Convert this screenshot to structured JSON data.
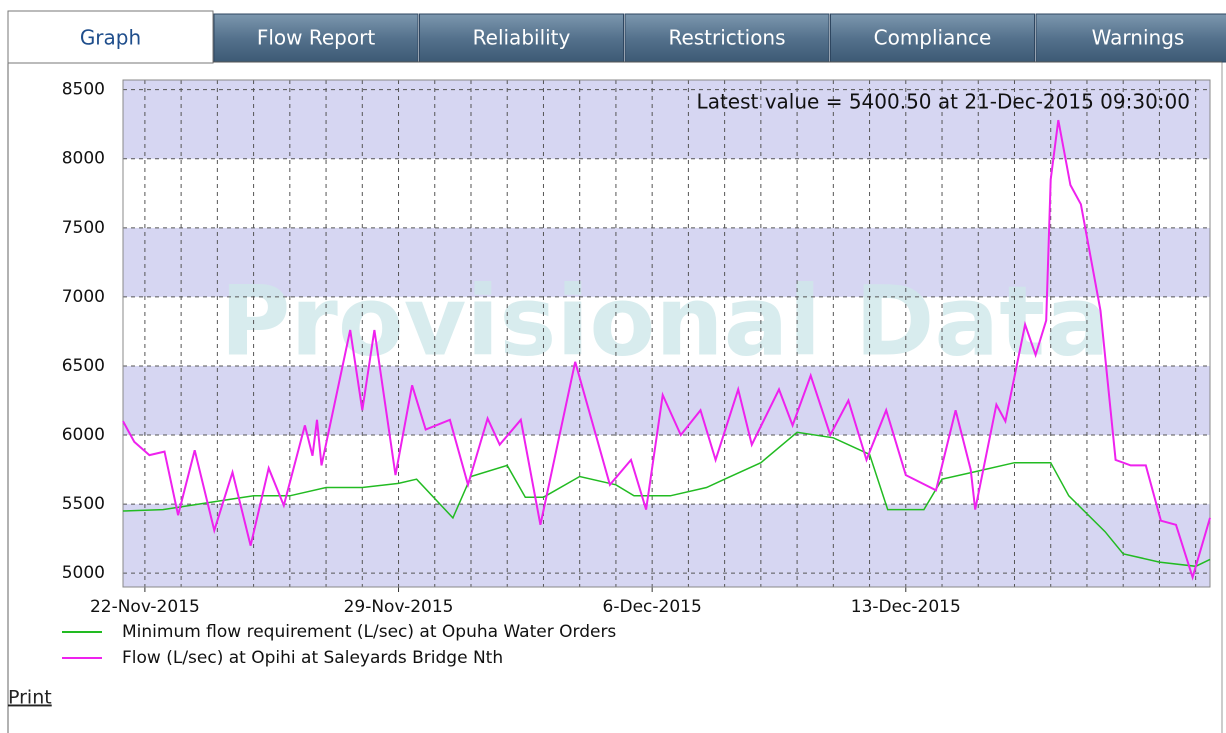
{
  "tabs": [
    "Graph",
    "Flow Report",
    "Reliability",
    "Restrictions",
    "Compliance",
    "Warnings"
  ],
  "print_link": "Print",
  "chart_data": {
    "type": "line",
    "watermark": "Provisional Data",
    "annotation": "Latest value = 5400.50 at 21-Dec-2015 09:30:00",
    "xlim": [
      "2015-11-21T09:30",
      "2015-12-21T09:30"
    ],
    "xticks": [
      {
        "value": "2015-11-22T00:00",
        "label": "22-Nov-2015"
      },
      {
        "value": "2015-11-29T00:00",
        "label": "29-Nov-2015"
      },
      {
        "value": "2015-12-06T00:00",
        "label": "6-Dec-2015"
      },
      {
        "value": "2015-12-13T00:00",
        "label": "13-Dec-2015"
      }
    ],
    "xgrid": [
      "2015-11-22T00:00",
      "2015-11-23T00:00",
      "2015-11-24T00:00",
      "2015-11-25T00:00",
      "2015-11-26T00:00",
      "2015-11-27T00:00",
      "2015-11-28T00:00",
      "2015-11-29T00:00",
      "2015-11-30T00:00",
      "2015-12-01T00:00",
      "2015-12-02T00:00",
      "2015-12-03T00:00",
      "2015-12-04T00:00",
      "2015-12-05T00:00",
      "2015-12-06T00:00",
      "2015-12-07T00:00",
      "2015-12-08T00:00",
      "2015-12-09T00:00",
      "2015-12-10T00:00",
      "2015-12-11T00:00",
      "2015-12-12T00:00",
      "2015-12-13T00:00",
      "2015-12-14T00:00",
      "2015-12-15T00:00",
      "2015-12-16T00:00",
      "2015-12-17T00:00",
      "2015-12-18T00:00",
      "2015-12-19T00:00",
      "2015-12-20T00:00",
      "2015-12-21T00:00"
    ],
    "ylim": [
      4900,
      8570
    ],
    "yticks": [
      5000,
      5500,
      6000,
      6500,
      7000,
      7500,
      8000,
      8500
    ],
    "grid": true,
    "series": [
      {
        "name": "Minimum flow requirement (L/sec) at Opuha Water Orders",
        "color": "#22bb22",
        "x": [
          "2015-11-21T09:30",
          "2015-11-22T12:00",
          "2015-11-24T00:00",
          "2015-11-25T00:00",
          "2015-11-26T00:00",
          "2015-11-27T00:00",
          "2015-11-28T00:00",
          "2015-11-29T00:00",
          "2015-11-29T12:00",
          "2015-11-30T12:00",
          "2015-12-01T00:00",
          "2015-12-02T00:00",
          "2015-12-02T12:00",
          "2015-12-03T00:00",
          "2015-12-04T00:00",
          "2015-12-05T00:00",
          "2015-12-05T12:00",
          "2015-12-06T12:00",
          "2015-12-07T12:00",
          "2015-12-08T00:00",
          "2015-12-09T00:00",
          "2015-12-10T00:00",
          "2015-12-11T00:00",
          "2015-12-12T00:00",
          "2015-12-12T12:00",
          "2015-12-13T12:00",
          "2015-12-14T00:00",
          "2015-12-15T00:00",
          "2015-12-16T00:00",
          "2015-12-17T00:00",
          "2015-12-17T12:00",
          "2015-12-18T12:00",
          "2015-12-19T00:00",
          "2015-12-20T00:00",
          "2015-12-21T00:00",
          "2015-12-21T09:30"
        ],
        "values": [
          5450,
          5460,
          5520,
          5560,
          5560,
          5620,
          5620,
          5650,
          5680,
          5400,
          5700,
          5780,
          5550,
          5550,
          5700,
          5640,
          5560,
          5560,
          5620,
          5680,
          5800,
          6020,
          5980,
          5860,
          5460,
          5460,
          5680,
          5740,
          5800,
          5800,
          5560,
          5300,
          5140,
          5080,
          5050,
          5100
        ]
      },
      {
        "name": "Flow (L/sec) at Opihi at Saleyards Bridge Nth",
        "color": "#ee22ee",
        "x": [
          "2015-11-21T09:30",
          "2015-11-21T17:00",
          "2015-11-22T03:00",
          "2015-11-22T13:00",
          "2015-11-22T22:00",
          "2015-11-23T09:00",
          "2015-11-23T22:00",
          "2015-11-24T10:00",
          "2015-11-24T22:00",
          "2015-11-25T10:00",
          "2015-11-25T20:00",
          "2015-11-26T10:00",
          "2015-11-26T15:00",
          "2015-11-26T18:00",
          "2015-11-26T21:00",
          "2015-11-27T16:00",
          "2015-11-28T00:00",
          "2015-11-28T08:00",
          "2015-11-28T22:00",
          "2015-11-29T09:00",
          "2015-11-29T18:00",
          "2015-11-30T10:00",
          "2015-11-30T22:00",
          "2015-12-01T11:00",
          "2015-12-01T19:00",
          "2015-12-02T09:00",
          "2015-12-02T22:00",
          "2015-12-03T21:00",
          "2015-12-04T20:00",
          "2015-12-05T10:00",
          "2015-12-05T20:00",
          "2015-12-06T07:00",
          "2015-12-06T19:00",
          "2015-12-07T08:00",
          "2015-12-07T18:00",
          "2015-12-08T09:00",
          "2015-12-08T18:00",
          "2015-12-09T12:00",
          "2015-12-09T21:00",
          "2015-12-10T09:00",
          "2015-12-10T22:00",
          "2015-12-11T10:00",
          "2015-12-11T22:00",
          "2015-12-12T11:00",
          "2015-12-13T00:00",
          "2015-12-13T20:00",
          "2015-12-14T09:00",
          "2015-12-14T19:00",
          "2015-12-14T22:00",
          "2015-12-15T12:00",
          "2015-12-15T18:00",
          "2015-12-16T07:00",
          "2015-12-16T14:00",
          "2015-12-16T21:00",
          "2015-12-17T00:00",
          "2015-12-17T05:00",
          "2015-12-17T13:00",
          "2015-12-17T20:00",
          "2015-12-18T09:00",
          "2015-12-18T19:00",
          "2015-12-19T05:00",
          "2015-12-19T15:00",
          "2015-12-20T01:00",
          "2015-12-20T11:00",
          "2015-12-20T22:00",
          "2015-12-21T09:30"
        ],
        "values": [
          6100,
          5950,
          5855,
          5880,
          5420,
          5890,
          5310,
          5730,
          5200,
          5760,
          5490,
          6070,
          5850,
          6110,
          5780,
          6760,
          6180,
          6760,
          5710,
          6360,
          6040,
          6110,
          5640,
          6120,
          5930,
          6110,
          5350,
          6530,
          5640,
          5820,
          5460,
          6290,
          6000,
          6180,
          5820,
          6330,
          5930,
          6330,
          6070,
          6430,
          6000,
          6250,
          5820,
          6180,
          5710,
          5600,
          6180,
          5750,
          5460,
          6220,
          6100,
          6800,
          6580,
          6830,
          7850,
          8280,
          7810,
          7670,
          6900,
          5820,
          5780,
          5780,
          5380,
          5350,
          4970,
          5400.5
        ]
      }
    ]
  }
}
